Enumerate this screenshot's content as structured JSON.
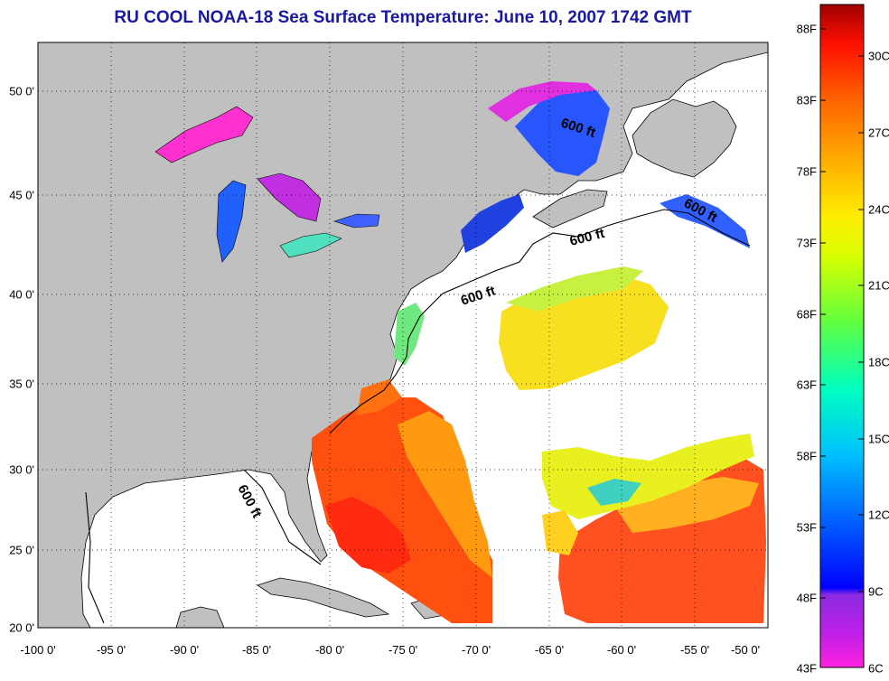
{
  "title": "RU COOL  NOAA-18  Sea Surface Temperature:  June 10, 2007 1742 GMT",
  "x_ticks": [
    "-100 0'",
    "-95 0'",
    "-90 0'",
    "-85 0'",
    "-80 0'",
    "-75 0'",
    "-70 0'",
    "-65 0'",
    "-60 0'",
    "-55 0'",
    "-50 0'"
  ],
  "y_ticks": [
    "50 0'",
    "45 0'",
    "40 0'",
    "35 0'",
    "30 0'",
    "25 0'",
    "20 0'"
  ],
  "contour_labels": [
    "600 ft",
    "600 ft",
    "600 ft",
    "600 ft",
    "600 ft"
  ],
  "colorbar": {
    "f_labels": [
      "88F",
      "83F",
      "78F",
      "73F",
      "68F",
      "63F",
      "58F",
      "53F",
      "48F",
      "43F"
    ],
    "c_labels": [
      "30C",
      "27C",
      "24C",
      "21C",
      "18C",
      "15C",
      "12C",
      "9C",
      "6C"
    ],
    "range_c": [
      6,
      32
    ],
    "colors": [
      "#ff22e0",
      "#8a2be2",
      "#0000ff",
      "#0080ff",
      "#00e0ff",
      "#00ff80",
      "#c0ff00",
      "#ffff00",
      "#ffb000",
      "#ff6000",
      "#ff0000",
      "#a00000"
    ]
  },
  "colors": {
    "land": "#c0c0c0",
    "ocean": "#ffffff",
    "title": "#1a1aa0"
  }
}
